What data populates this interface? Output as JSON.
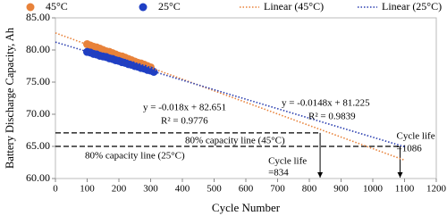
{
  "chart_data": {
    "type": "scatter",
    "x_label": "Cycle Number",
    "y_label": "Battery Discharge Capacity, Ah",
    "xlim": [
      0,
      1200
    ],
    "xticks": [
      0,
      100,
      200,
      300,
      400,
      500,
      600,
      700,
      800,
      900,
      1000,
      1100,
      1200
    ],
    "ylim": [
      60,
      85
    ],
    "yticks": [
      {
        "value": 60,
        "label": "60.00"
      },
      {
        "value": 65,
        "label": "65.00"
      },
      {
        "value": 70,
        "label": "70.00"
      },
      {
        "value": 75,
        "label": "75.00"
      },
      {
        "value": 80,
        "label": "80.00"
      },
      {
        "value": 85,
        "label": "85.00"
      }
    ],
    "legend": "top",
    "series": [
      {
        "name": "45°C",
        "color": "#e8823a",
        "marker": "circle",
        "x": [
          100,
          110,
          120,
          130,
          140,
          150,
          160,
          170,
          180,
          190,
          200,
          210,
          220,
          230,
          240,
          250,
          260,
          270,
          280,
          290,
          300
        ],
        "values": [
          80.9,
          80.7,
          80.5,
          80.4,
          80.2,
          80.0,
          79.8,
          79.7,
          79.5,
          79.3,
          79.1,
          79.0,
          78.8,
          78.6,
          78.4,
          78.2,
          78.0,
          77.9,
          77.7,
          77.5,
          77.3
        ]
      },
      {
        "name": "25°C",
        "color": "#1f3fc4",
        "marker": "circle",
        "x": [
          100,
          110,
          120,
          130,
          140,
          150,
          160,
          170,
          180,
          190,
          200,
          210,
          220,
          230,
          240,
          250,
          260,
          270,
          280,
          290,
          300,
          310
        ],
        "values": [
          79.7,
          79.6,
          79.4,
          79.3,
          79.1,
          79.0,
          78.9,
          78.7,
          78.6,
          78.4,
          78.3,
          78.1,
          78.0,
          77.8,
          77.7,
          77.5,
          77.4,
          77.2,
          77.1,
          76.9,
          76.8,
          76.6
        ]
      },
      {
        "name": "Linear (45°C)",
        "color": "#e8823a",
        "line": "dotted",
        "x": [
          0,
          1100
        ],
        "values": [
          82.651,
          62.851
        ]
      },
      {
        "name": "Linear (25°C)",
        "color": "#2b3fb0",
        "line": "dotted",
        "x": [
          0,
          1100
        ],
        "values": [
          81.225,
          64.945
        ]
      }
    ],
    "equations": [
      {
        "equation": "y = -0.018x + 82.651",
        "r2": "R² = 0.9776"
      },
      {
        "equation": "y = -0.0148x + 81.225",
        "r2": "R² = 0.9839"
      }
    ],
    "reference_lines": [
      {
        "label": "80% capacity line (45°C)",
        "color": "#e8823a",
        "y": 67.1
      },
      {
        "label": "80% capacity line (25°C)",
        "color": "#3a5fc4",
        "y": 65
      }
    ],
    "cycle_life": [
      {
        "title": "Cycle life",
        "label": "=834",
        "x": 834,
        "y": 67.1
      },
      {
        "title": "Cycle life",
        "label": "=1086",
        "x": 1086,
        "y": 65
      }
    ]
  }
}
